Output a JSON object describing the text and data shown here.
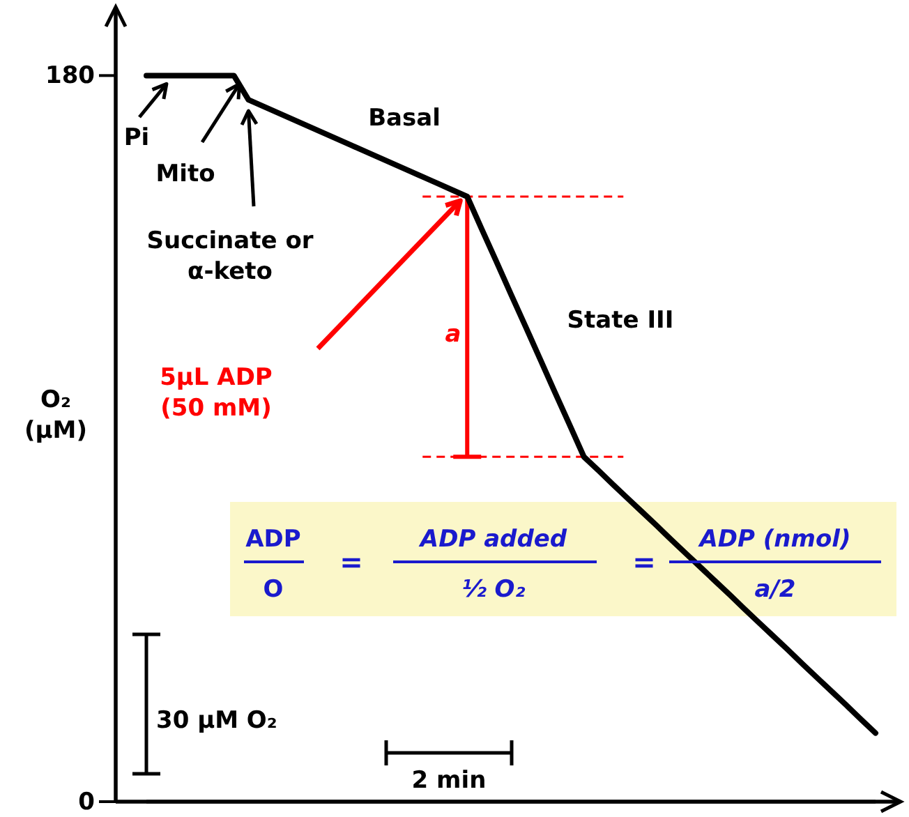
{
  "chart_data": {
    "type": "line",
    "ylabel": "O₂ (μM)",
    "categories": [
      null,
      null,
      null,
      null,
      null,
      null,
      null,
      null,
      null,
      null,
      null,
      null,
      null,
      null,
      null,
      null,
      null,
      null,
      null,
      null,
      null,
      null,
      null,
      null,
      null,
      null,
      null,
      null,
      null,
      null,
      null,
      null,
      null,
      null,
      null,
      null,
      null,
      null,
      null,
      null,
      null,
      null,
      null,
      null,
      null,
      null,
      null,
      null,
      null,
      null,
      null
    ],
    "values": [
      180,
      180,
      180,
      180,
      180,
      180,
      180,
      174,
      172.4,
      170.8,
      169.2,
      167.6,
      166,
      164.4,
      162.8,
      161.2,
      159.6,
      158,
      156.4,
      154.8,
      153.2,
      151.6,
      150,
      141.9,
      133.9,
      125.8,
      117.8,
      109.7,
      101.6,
      93.6,
      85.5,
      82.1,
      78.6,
      75.2,
      71.8,
      68.4,
      64.9,
      61.5,
      58.1,
      54.7,
      51.3,
      47.8,
      44.4,
      41,
      37.6,
      34.1,
      30.7,
      27.3,
      23.9,
      20.4,
      17
    ],
    "color": "#000000",
    "ylim": [
      0,
      197
    ],
    "yticks": [
      0,
      180
    ],
    "tick_labels": "y",
    "ref_lines": [
      {
        "axis": "y",
        "value": 150,
        "color": "#ff0000",
        "line_style": "dashed"
      },
      {
        "axis": "y",
        "value": 85.5,
        "color": "#ff0000",
        "line_style": "dashed"
      }
    ],
    "annotations": [
      "Pi",
      "Mito",
      "Succinate or α-keto",
      "5μL ADP (50 mM)",
      "a",
      "Basal",
      "State III",
      "30 μM O₂",
      "2 min",
      "ADP",
      "O",
      "=",
      "ADP added",
      "½ O₂",
      "=",
      "ADP (nmol)",
      "a/2"
    ]
  }
}
